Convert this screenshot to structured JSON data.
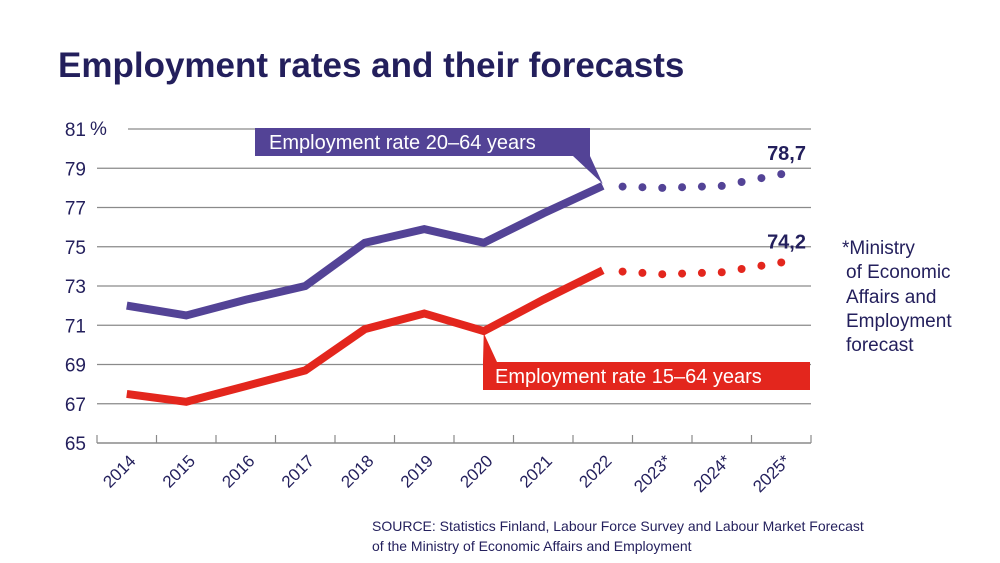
{
  "title": "Employment rates and their forecasts",
  "note_lines": [
    "*Ministry",
    "of Economic",
    "Affairs and",
    "Employment",
    "forecast"
  ],
  "source_lines": [
    "SOURCE: Statistics Finland, Labour Force Survey and Labour Market Forecast",
    "of the Ministry of Economic Affairs and Employment"
  ],
  "colors": {
    "series_20_64": "#534396",
    "series_15_64": "#e3261d",
    "text": "#231f5c",
    "grid": "#8a8a8a"
  },
  "chart_data": {
    "type": "line",
    "title": "Employment rates and their forecasts",
    "ylabel": "%",
    "unit_label": "%",
    "ylim": [
      65,
      81
    ],
    "yticks": [
      "65",
      "67",
      "69",
      "71",
      "73",
      "75",
      "77",
      "79",
      "81"
    ],
    "categories": [
      "2014",
      "2015",
      "2016",
      "2017",
      "2018",
      "2019",
      "2020",
      "2021",
      "2022",
      "2023*",
      "2024*",
      "2025*"
    ],
    "grid": true,
    "forecast_from": "2022",
    "series": [
      {
        "name": "Employment rate 20–64 years",
        "color": "#534396",
        "values": [
          72.0,
          71.5,
          72.3,
          73.0,
          75.2,
          75.9,
          75.2,
          76.7,
          78.1,
          78.0,
          78.1,
          78.7
        ],
        "end_label": "78,7"
      },
      {
        "name": "Employment rate 15–64 years",
        "color": "#e3261d",
        "values": [
          67.5,
          67.1,
          67.9,
          68.7,
          70.8,
          71.6,
          70.7,
          72.3,
          73.8,
          73.6,
          73.7,
          74.2
        ],
        "end_label": "74,2"
      }
    ]
  }
}
